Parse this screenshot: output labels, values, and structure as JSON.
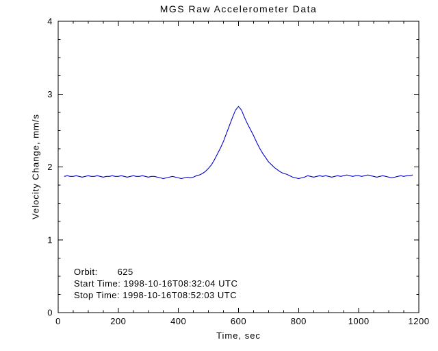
{
  "annotations": {
    "orbit": "Orbit:       625",
    "start": "Start Time: 1998-10-16T08:32:04 UTC",
    "stop": "Stop Time: 1998-10-16T08:52:03 UTC"
  },
  "chart_data": {
    "type": "line",
    "title": "MGS Raw Accelerometer Data",
    "xlabel": "Time, sec",
    "ylabel": "Velocity Change, mm/s",
    "xlim": [
      0,
      1200
    ],
    "ylim": [
      0,
      4
    ],
    "xticks": [
      0,
      200,
      400,
      600,
      800,
      1000,
      1200
    ],
    "yticks": [
      0,
      1,
      2,
      3,
      4
    ],
    "x_minor_step": 50,
    "y_minor_step": 0.25,
    "grid": false,
    "legend": "none",
    "line_color": "#0000cd",
    "axis_color": "#000000",
    "background_color": "#ffffff",
    "series": [
      {
        "name": "velocity_change",
        "x": [
          20,
          30,
          40,
          50,
          60,
          70,
          80,
          90,
          100,
          110,
          120,
          130,
          140,
          150,
          160,
          170,
          180,
          190,
          200,
          210,
          220,
          230,
          240,
          250,
          260,
          270,
          280,
          290,
          300,
          310,
          320,
          330,
          340,
          350,
          360,
          370,
          380,
          390,
          400,
          410,
          420,
          430,
          440,
          450,
          460,
          470,
          480,
          490,
          500,
          510,
          520,
          530,
          540,
          550,
          560,
          570,
          580,
          590,
          600,
          610,
          620,
          630,
          640,
          650,
          660,
          670,
          680,
          690,
          700,
          710,
          720,
          730,
          740,
          750,
          760,
          770,
          780,
          790,
          800,
          810,
          820,
          830,
          840,
          850,
          860,
          870,
          880,
          890,
          900,
          910,
          920,
          930,
          940,
          950,
          960,
          970,
          980,
          990,
          1000,
          1010,
          1020,
          1030,
          1040,
          1050,
          1060,
          1070,
          1080,
          1090,
          1100,
          1110,
          1120,
          1130,
          1140,
          1150,
          1160,
          1170,
          1180
        ],
        "y": [
          1.87,
          1.88,
          1.87,
          1.87,
          1.88,
          1.87,
          1.86,
          1.87,
          1.88,
          1.87,
          1.87,
          1.88,
          1.87,
          1.86,
          1.87,
          1.87,
          1.88,
          1.87,
          1.87,
          1.88,
          1.87,
          1.86,
          1.87,
          1.88,
          1.87,
          1.87,
          1.88,
          1.87,
          1.86,
          1.87,
          1.87,
          1.86,
          1.85,
          1.84,
          1.85,
          1.86,
          1.87,
          1.86,
          1.85,
          1.84,
          1.85,
          1.86,
          1.85,
          1.86,
          1.88,
          1.89,
          1.91,
          1.94,
          1.98,
          2.03,
          2.1,
          2.18,
          2.26,
          2.35,
          2.46,
          2.57,
          2.68,
          2.78,
          2.83,
          2.78,
          2.68,
          2.59,
          2.51,
          2.43,
          2.34,
          2.26,
          2.19,
          2.13,
          2.07,
          2.03,
          1.99,
          1.96,
          1.93,
          1.91,
          1.9,
          1.88,
          1.86,
          1.85,
          1.84,
          1.85,
          1.86,
          1.88,
          1.87,
          1.86,
          1.87,
          1.88,
          1.87,
          1.88,
          1.87,
          1.86,
          1.87,
          1.88,
          1.87,
          1.88,
          1.89,
          1.88,
          1.87,
          1.88,
          1.88,
          1.87,
          1.88,
          1.89,
          1.88,
          1.87,
          1.86,
          1.87,
          1.88,
          1.87,
          1.86,
          1.85,
          1.86,
          1.87,
          1.88,
          1.87,
          1.88,
          1.88,
          1.89
        ]
      }
    ]
  }
}
